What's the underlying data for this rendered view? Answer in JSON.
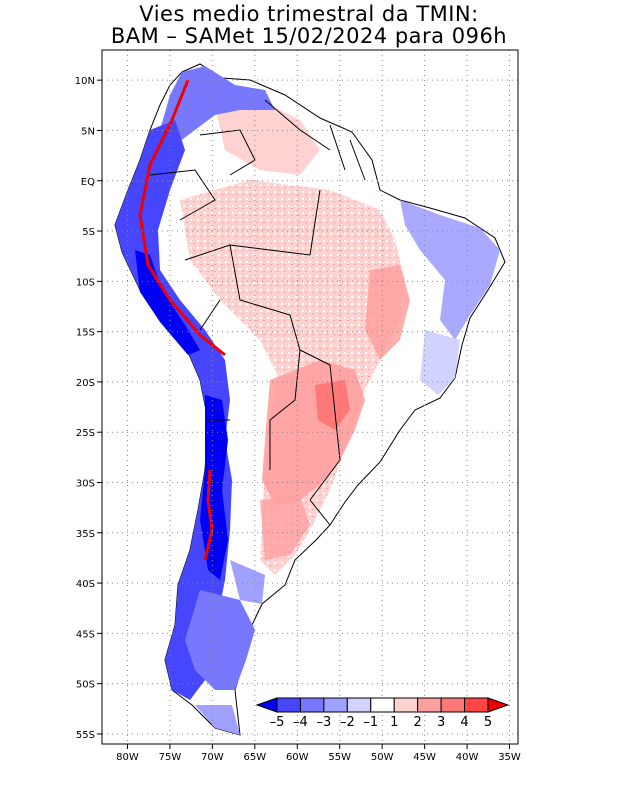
{
  "title": {
    "line1": "Vies medio trimestral da TMIN:",
    "line2": "BAM – SAMet 15/02/2024  para 096h"
  },
  "axes": {
    "lon_labels": [
      "80W",
      "75W",
      "70W",
      "65W",
      "60W",
      "55W",
      "50W",
      "45W",
      "40W",
      "35W"
    ],
    "lat_labels": [
      "10N",
      "5N",
      "EQ",
      "5S",
      "10S",
      "15S",
      "20S",
      "25S",
      "30S",
      "35S",
      "40S",
      "45S",
      "50S",
      "55S"
    ],
    "lon_range": [
      -83,
      -34
    ],
    "lat_range": [
      -56,
      13
    ],
    "grid": "dotted"
  },
  "colorbar": {
    "labels": [
      "–5",
      "–4",
      "–3",
      "–2",
      "–1",
      "1",
      "2",
      "3",
      "4",
      "5"
    ],
    "colors": [
      "#0000f5",
      "#4646ff",
      "#7878ff",
      "#a0a0ff",
      "#d2d2ff",
      "#ffffff",
      "#ffd2d2",
      "#ffa0a0",
      "#ff7878",
      "#ff4646",
      "#f00000"
    ]
  },
  "map": {
    "variable": "TMIN bias",
    "colors": {
      "land_neutral": "#ffffff",
      "warm_light": "#ffd2d2",
      "warm_mid": "#ffa0a0",
      "warm_strong": "#ff7878",
      "cool_light": "#d2d2ff",
      "cool_mid": "#a0a0ff",
      "cool_strong": "#4646ff",
      "cool_extreme": "#0000f5",
      "hot_extreme": "#f00000"
    }
  }
}
